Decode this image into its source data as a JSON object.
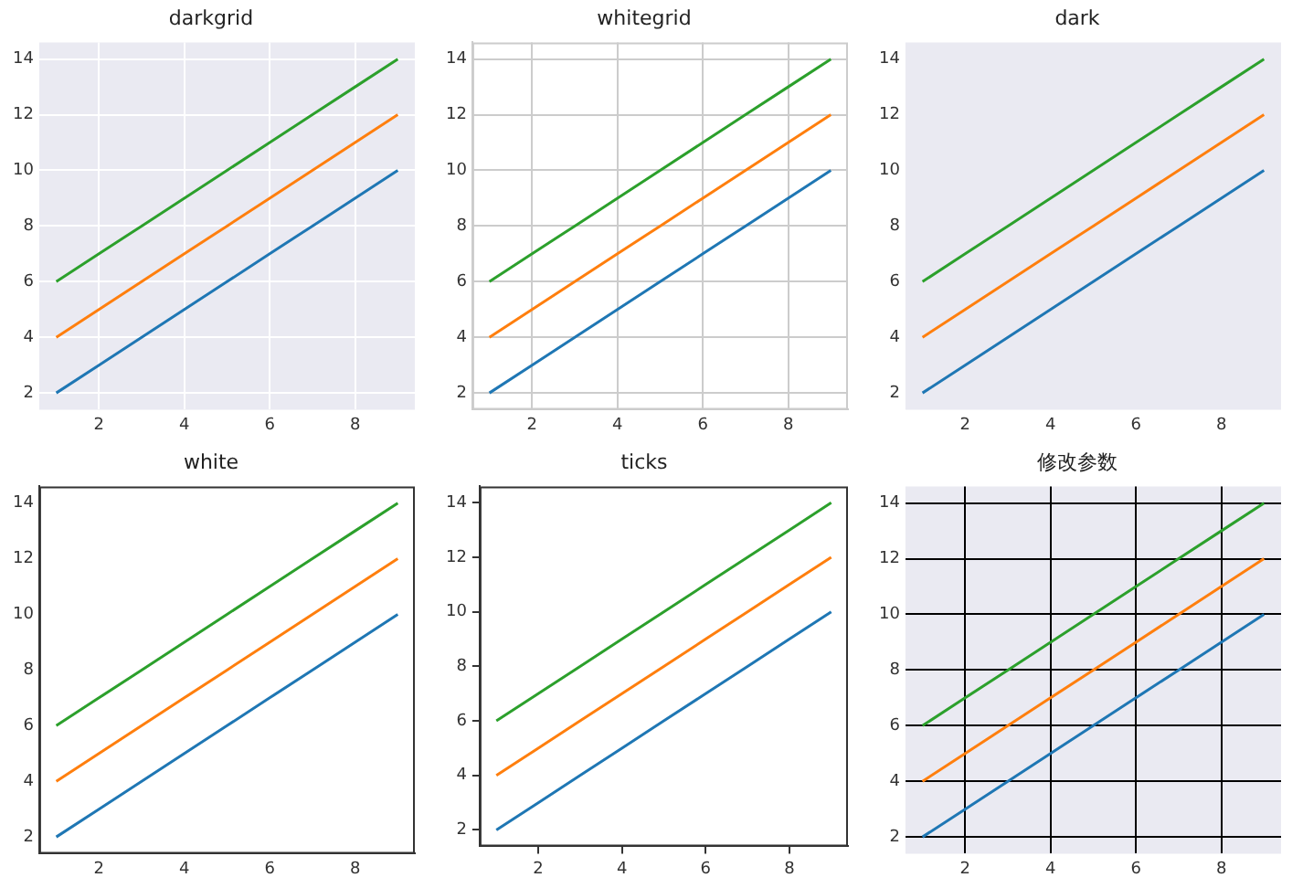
{
  "chart_data": [
    {
      "type": "line",
      "title": "darkgrid",
      "x": [
        1,
        2,
        3,
        4,
        5,
        6,
        7,
        8,
        9
      ],
      "series": [
        {
          "color": "#1f77b4",
          "values": [
            2,
            3,
            4,
            5,
            6,
            7,
            8,
            9,
            10
          ]
        },
        {
          "color": "#ff7f0e",
          "values": [
            4,
            5,
            6,
            7,
            8,
            9,
            10,
            11,
            12
          ]
        },
        {
          "color": "#2ca02c",
          "values": [
            6,
            7,
            8,
            9,
            10,
            11,
            12,
            13,
            14
          ]
        }
      ],
      "xlim": [
        0.6,
        9.4
      ],
      "ylim": [
        1.4,
        14.6
      ],
      "xticks": [
        2,
        4,
        6,
        8
      ],
      "yticks": [
        2,
        4,
        6,
        8,
        10,
        12,
        14
      ],
      "grid": true,
      "legend": false
    },
    {
      "type": "line",
      "title": "whitegrid",
      "x": [
        1,
        2,
        3,
        4,
        5,
        6,
        7,
        8,
        9
      ],
      "series": [
        {
          "color": "#1f77b4",
          "values": [
            2,
            3,
            4,
            5,
            6,
            7,
            8,
            9,
            10
          ]
        },
        {
          "color": "#ff7f0e",
          "values": [
            4,
            5,
            6,
            7,
            8,
            9,
            10,
            11,
            12
          ]
        },
        {
          "color": "#2ca02c",
          "values": [
            6,
            7,
            8,
            9,
            10,
            11,
            12,
            13,
            14
          ]
        }
      ],
      "xlim": [
        0.6,
        9.4
      ],
      "ylim": [
        1.4,
        14.6
      ],
      "xticks": [
        2,
        4,
        6,
        8
      ],
      "yticks": [
        2,
        4,
        6,
        8,
        10,
        12,
        14
      ],
      "grid": true,
      "legend": false
    },
    {
      "type": "line",
      "title": "dark",
      "x": [
        1,
        2,
        3,
        4,
        5,
        6,
        7,
        8,
        9
      ],
      "series": [
        {
          "color": "#1f77b4",
          "values": [
            2,
            3,
            4,
            5,
            6,
            7,
            8,
            9,
            10
          ]
        },
        {
          "color": "#ff7f0e",
          "values": [
            4,
            5,
            6,
            7,
            8,
            9,
            10,
            11,
            12
          ]
        },
        {
          "color": "#2ca02c",
          "values": [
            6,
            7,
            8,
            9,
            10,
            11,
            12,
            13,
            14
          ]
        }
      ],
      "xlim": [
        0.6,
        9.4
      ],
      "ylim": [
        1.4,
        14.6
      ],
      "xticks": [
        2,
        4,
        6,
        8
      ],
      "yticks": [
        2,
        4,
        6,
        8,
        10,
        12,
        14
      ],
      "grid": false,
      "legend": false
    },
    {
      "type": "line",
      "title": "white",
      "x": [
        1,
        2,
        3,
        4,
        5,
        6,
        7,
        8,
        9
      ],
      "series": [
        {
          "color": "#1f77b4",
          "values": [
            2,
            3,
            4,
            5,
            6,
            7,
            8,
            9,
            10
          ]
        },
        {
          "color": "#ff7f0e",
          "values": [
            4,
            5,
            6,
            7,
            8,
            9,
            10,
            11,
            12
          ]
        },
        {
          "color": "#2ca02c",
          "values": [
            6,
            7,
            8,
            9,
            10,
            11,
            12,
            13,
            14
          ]
        }
      ],
      "xlim": [
        0.6,
        9.4
      ],
      "ylim": [
        1.4,
        14.6
      ],
      "xticks": [
        2,
        4,
        6,
        8
      ],
      "yticks": [
        2,
        4,
        6,
        8,
        10,
        12,
        14
      ],
      "grid": false,
      "legend": false
    },
    {
      "type": "line",
      "title": "ticks",
      "x": [
        1,
        2,
        3,
        4,
        5,
        6,
        7,
        8,
        9
      ],
      "series": [
        {
          "color": "#1f77b4",
          "values": [
            2,
            3,
            4,
            5,
            6,
            7,
            8,
            9,
            10
          ]
        },
        {
          "color": "#ff7f0e",
          "values": [
            4,
            5,
            6,
            7,
            8,
            9,
            10,
            11,
            12
          ]
        },
        {
          "color": "#2ca02c",
          "values": [
            6,
            7,
            8,
            9,
            10,
            11,
            12,
            13,
            14
          ]
        }
      ],
      "xlim": [
        0.6,
        9.4
      ],
      "ylim": [
        1.4,
        14.6
      ],
      "xticks": [
        2,
        4,
        6,
        8
      ],
      "yticks": [
        2,
        4,
        6,
        8,
        10,
        12,
        14
      ],
      "grid": false,
      "legend": false
    },
    {
      "type": "line",
      "title": "修改参数",
      "x": [
        1,
        2,
        3,
        4,
        5,
        6,
        7,
        8,
        9
      ],
      "series": [
        {
          "color": "#1f77b4",
          "values": [
            2,
            3,
            4,
            5,
            6,
            7,
            8,
            9,
            10
          ]
        },
        {
          "color": "#ff7f0e",
          "values": [
            4,
            5,
            6,
            7,
            8,
            9,
            10,
            11,
            12
          ]
        },
        {
          "color": "#2ca02c",
          "values": [
            6,
            7,
            8,
            9,
            10,
            11,
            12,
            13,
            14
          ]
        }
      ],
      "xlim": [
        0.6,
        9.4
      ],
      "ylim": [
        1.4,
        14.6
      ],
      "xticks": [
        2,
        4,
        6,
        8
      ],
      "yticks": [
        2,
        4,
        6,
        8,
        10,
        12,
        14
      ],
      "grid": true,
      "legend": false
    }
  ]
}
